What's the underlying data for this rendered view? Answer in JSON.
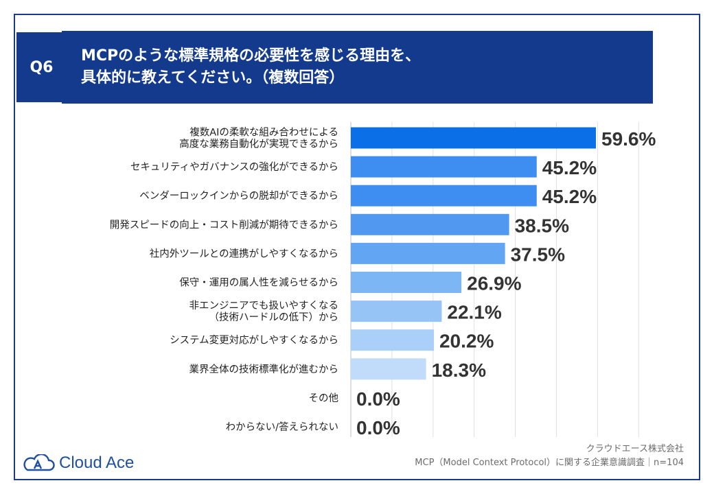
{
  "header": {
    "question_tag": "Q6",
    "title_line1": "MCPのような標準規格の必要性を感じる理由を、",
    "title_line2": "具体的に教えてください。（複数回答）"
  },
  "chart_data": {
    "type": "bar",
    "orientation": "horizontal",
    "categories": [
      [
        "複数AIの柔軟な組み合わせによる",
        "高度な業務自動化が実現できるから"
      ],
      [
        "セキュリティやガバナンスの強化ができるから"
      ],
      [
        "ベンダーロックインからの脱却ができるから"
      ],
      [
        "開発スピードの向上・コスト削減が期待できるから"
      ],
      [
        "社内外ツールとの連携がしやすくなるから"
      ],
      [
        "保守・運用の属人性を減らせるから"
      ],
      [
        "非エンジニアでも扱いやすくなる",
        "（技術ハードルの低下）から"
      ],
      [
        "システム変更対応がしやすくなるから"
      ],
      [
        "業界全体の技術標準化が進むから"
      ],
      [
        "その他"
      ],
      [
        "わからない/答えられない"
      ]
    ],
    "values": [
      59.6,
      45.2,
      45.2,
      38.5,
      37.5,
      26.9,
      22.1,
      20.2,
      18.3,
      0.0,
      0.0
    ],
    "value_labels": [
      "59.6%",
      "45.2%",
      "45.2%",
      "38.5%",
      "37.5%",
      "26.9%",
      "22.1%",
      "20.2%",
      "18.3%",
      "0.0%",
      "0.0%"
    ],
    "colors": [
      "#0b6fe8",
      "#3d8ef0",
      "#3d8ef0",
      "#5199f0",
      "#62a5f3",
      "#7db6f5",
      "#96c4f7",
      "#aacff8",
      "#c0dcfa",
      "#c0dcfa",
      "#c0dcfa"
    ],
    "xlim": [
      0,
      70
    ],
    "grid": true
  },
  "footer": {
    "company": "クラウドエース株式会社",
    "survey": "MCP（Model Context Protocol）に関する企業意識調査｜n=104",
    "logo_text": "Cloud Ace"
  }
}
